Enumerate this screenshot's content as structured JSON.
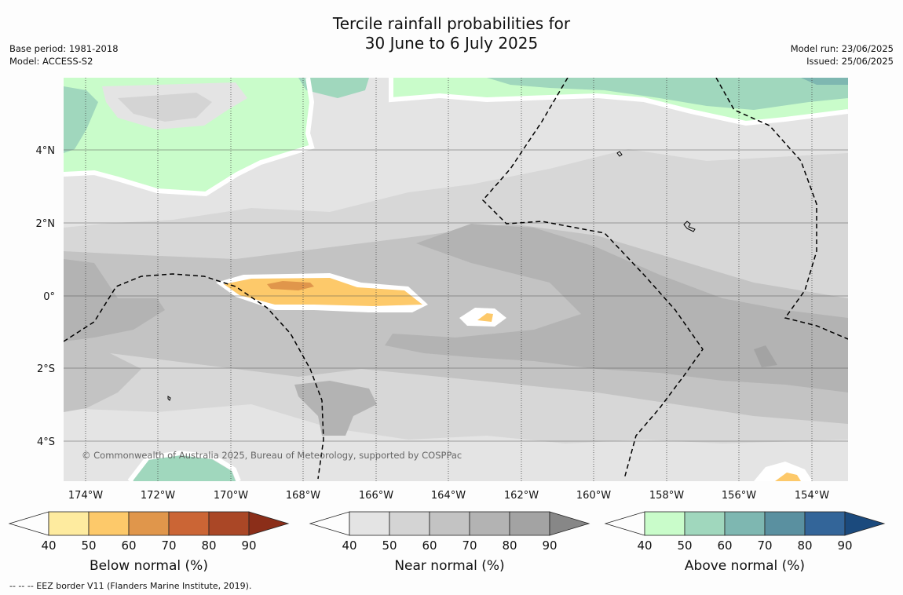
{
  "header": {
    "title_line1": "Tercile rainfall probabilities for",
    "title_line2": "30 June to 6 July 2025",
    "base_period": "Base period: 1981-2018",
    "model": "Model: ACCESS-S2",
    "model_run": "Model run: 23/06/2025",
    "issued": "Issued: 25/06/2025"
  },
  "map": {
    "copyright": "© Commonwealth of Australia 2025, Bureau of Meteorology, supported by COSPPac",
    "lat_labels": [
      "4°N",
      "2°N",
      "0°",
      "2°S",
      "4°S"
    ],
    "lon_labels": [
      "174°W",
      "172°W",
      "170°W",
      "168°W",
      "166°W",
      "164°W",
      "162°W",
      "160°W",
      "158°W",
      "156°W",
      "154°W"
    ]
  },
  "legends": [
    {
      "title": "Below normal (%)",
      "ticks": [
        "40",
        "50",
        "60",
        "70",
        "80",
        "90"
      ],
      "colors": [
        "#fdfdfd",
        "#feeb9f",
        "#fdc96a",
        "#e0964b",
        "#cb6535",
        "#aa4726",
        "#8b2e19"
      ]
    },
    {
      "title": "Near normal (%)",
      "ticks": [
        "40",
        "50",
        "60",
        "70",
        "80",
        "90"
      ],
      "colors": [
        "#fdfdfd",
        "#e4e4e4",
        "#d4d4d4",
        "#c3c3c3",
        "#b3b3b3",
        "#a3a3a3",
        "#878787"
      ]
    },
    {
      "title": "Above normal (%)",
      "ticks": [
        "40",
        "50",
        "60",
        "70",
        "80",
        "90"
      ],
      "colors": [
        "#fdfdfd",
        "#c9fcca",
        "#a0d7bd",
        "#7eb7b1",
        "#5a90a0",
        "#336599",
        "#1b4a7d"
      ]
    }
  ],
  "footer": {
    "eez_note": "-- -- -- EEZ border V11 (Flanders Marine Institute, 2019)."
  }
}
